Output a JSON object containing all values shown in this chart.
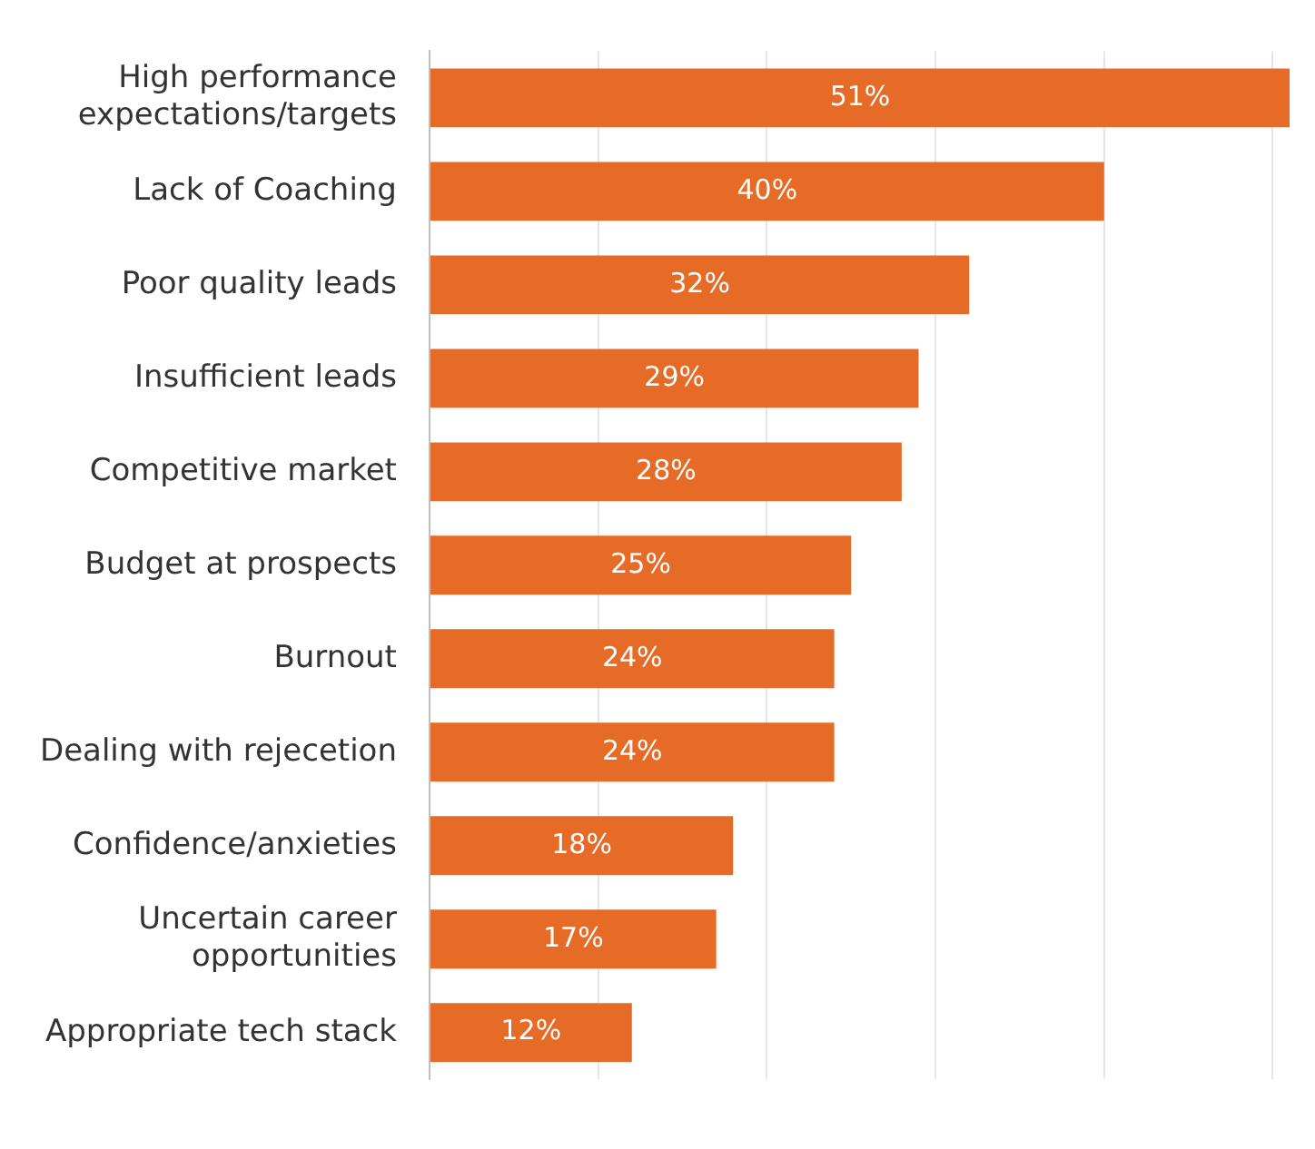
{
  "chart_data": {
    "type": "bar",
    "orientation": "horizontal",
    "categories": [
      "High performance expectations/targets",
      "Lack of Coaching",
      "Poor quality leads",
      "Insufficient leads",
      "Competitive market",
      "Budget at prospects",
      "Burnout",
      "Dealing with rejecetion",
      "Confidence/anxieties",
      "Uncertain career opportunities",
      "Appropriate tech stack"
    ],
    "values": [
      51,
      40,
      32,
      29,
      28,
      25,
      24,
      24,
      18,
      17,
      12
    ],
    "value_labels": [
      "51%",
      "40%",
      "32%",
      "29%",
      "28%",
      "25%",
      "24%",
      "24%",
      "18%",
      "17%",
      "12%"
    ],
    "color": "#e66b26",
    "xticks": [
      {
        "value": 0,
        "label": null
      },
      {
        "value": 10,
        "label": null
      },
      {
        "value": 20,
        "label": null
      },
      {
        "value": 30,
        "label": null
      },
      {
        "value": 40,
        "label": null
      },
      {
        "value": 50,
        "label": null
      }
    ],
    "grid": "x",
    "tick_labels": "y",
    "legend": false
  }
}
